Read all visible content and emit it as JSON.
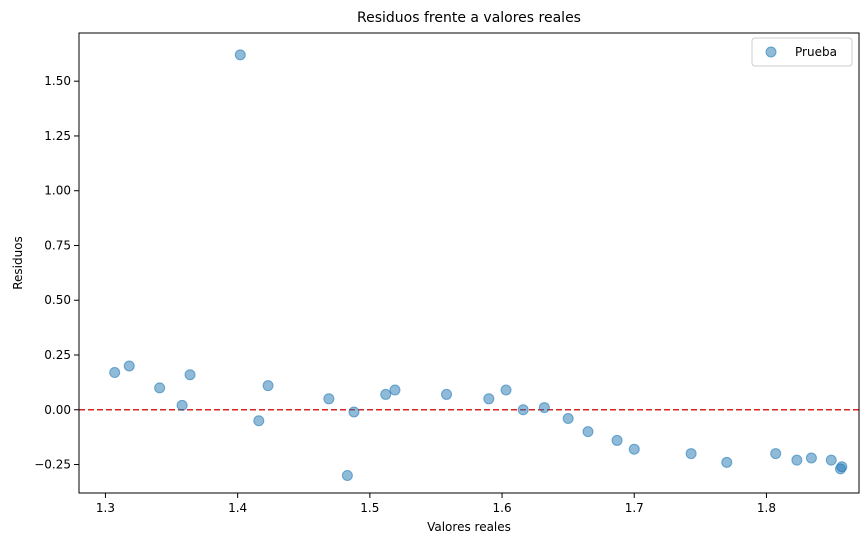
{
  "chart_data": {
    "type": "scatter",
    "title": "Residuos frente a valores reales",
    "xlabel": "Valores reales",
    "ylabel": "Residuos",
    "xlim": [
      1.28,
      1.87
    ],
    "ylim": [
      -0.38,
      1.72
    ],
    "xticks": [
      1.3,
      1.4,
      1.5,
      1.6,
      1.7,
      1.8
    ],
    "xtick_labels": [
      "1.3",
      "1.4",
      "1.5",
      "1.6",
      "1.7",
      "1.8"
    ],
    "yticks": [
      -0.25,
      0.0,
      0.25,
      0.5,
      0.75,
      1.0,
      1.25,
      1.5
    ],
    "ytick_labels": [
      "−0.25",
      "0.00",
      "0.25",
      "0.50",
      "0.75",
      "1.00",
      "1.25",
      "1.50"
    ],
    "grid": false,
    "legend_position": "top-right",
    "reference_line": {
      "y": 0.0,
      "style": "dashed",
      "color": "#d62728"
    },
    "series": [
      {
        "name": "Prueba",
        "color": "#1f77b4",
        "x": [
          1.307,
          1.318,
          1.341,
          1.358,
          1.364,
          1.402,
          1.416,
          1.423,
          1.469,
          1.483,
          1.488,
          1.512,
          1.519,
          1.558,
          1.59,
          1.603,
          1.616,
          1.632,
          1.65,
          1.665,
          1.687,
          1.7,
          1.743,
          1.77,
          1.807,
          1.823,
          1.834,
          1.849,
          1.856,
          1.857
        ],
        "y": [
          0.17,
          0.2,
          0.1,
          0.02,
          0.16,
          1.62,
          -0.05,
          0.11,
          0.05,
          -0.3,
          -0.01,
          0.07,
          0.09,
          0.07,
          0.05,
          0.09,
          0.0,
          0.01,
          -0.04,
          -0.1,
          -0.14,
          -0.18,
          -0.2,
          -0.24,
          -0.2,
          -0.23,
          -0.22,
          -0.23,
          -0.27,
          -0.26
        ]
      }
    ]
  }
}
